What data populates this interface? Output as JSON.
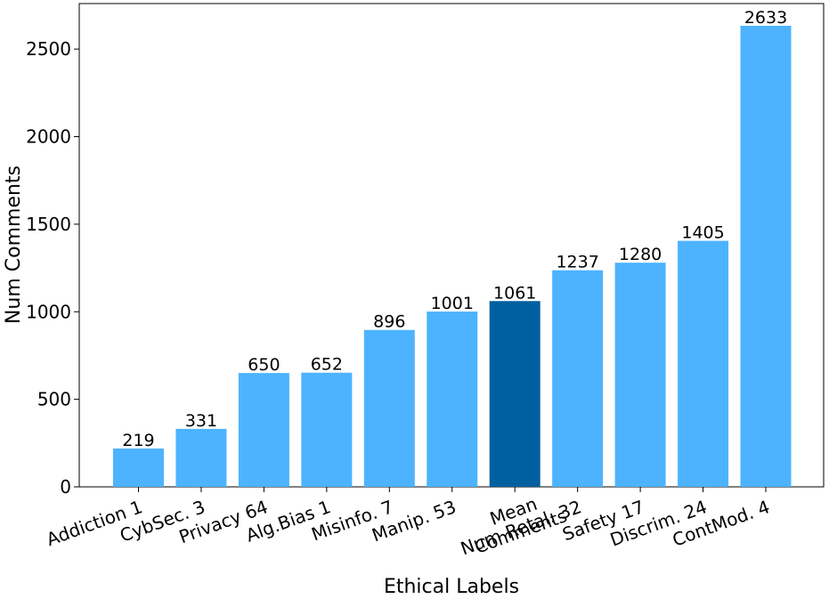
{
  "chart_data": {
    "type": "bar",
    "title": "",
    "xlabel": "Ethical Labels",
    "ylabel": "Num Comments",
    "ylim": [
      0,
      2760
    ],
    "yticks": [
      0,
      500,
      1000,
      1500,
      2000,
      2500
    ],
    "grid": false,
    "categories": [
      "Addiction 1",
      "CybSec. 3",
      "Privacy 64",
      "Alg.Bias 1",
      "Misinfo. 7",
      "Manip. 53",
      "Mean\nComments",
      "Num Retal. 32",
      "Safety 17",
      "Discrim. 24",
      "ContMod. 4"
    ],
    "values": [
      219,
      331,
      650,
      652,
      896,
      1001,
      1061,
      1237,
      1280,
      1405,
      2633
    ],
    "highlight_index": 6,
    "colors": {
      "bar": "#4db3ff",
      "highlight": "#005f9e",
      "axis": "#000000"
    }
  }
}
